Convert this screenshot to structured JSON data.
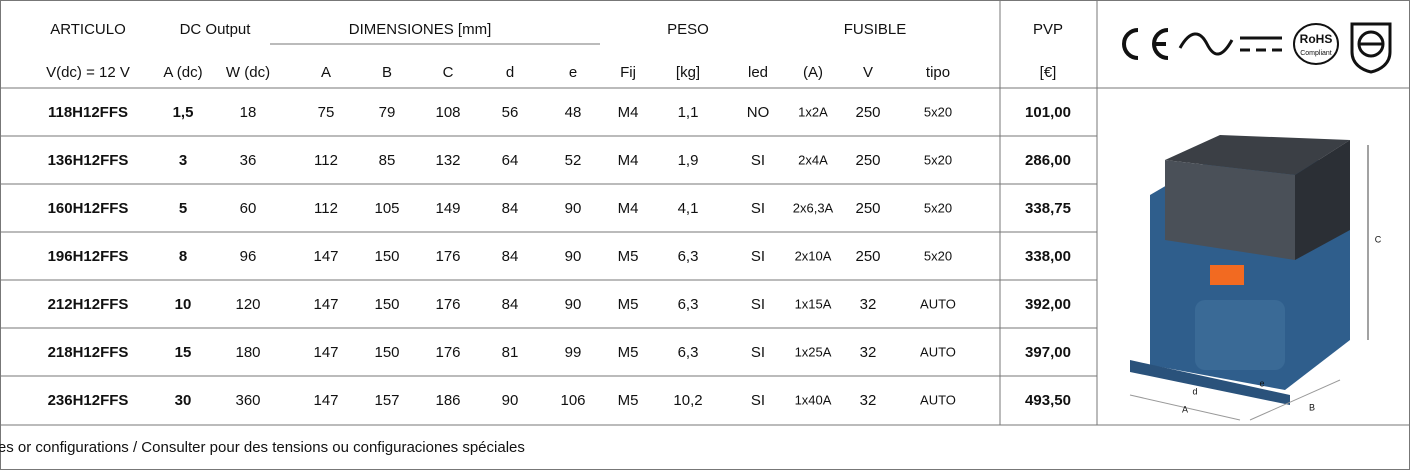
{
  "header": {
    "row1": [
      "ARTICULO",
      "DC Output",
      "DIMENSIONES [mm]",
      "PESO",
      "FUSIBLE",
      "PVP"
    ],
    "row2": [
      "V(dc) = 12 V",
      "A (dc)",
      "W (dc)",
      "A",
      "B",
      "C",
      "d",
      "e",
      "Fij",
      "[kg]",
      "led",
      "(A)",
      "V",
      "tipo",
      "[€]"
    ]
  },
  "certifications": {
    "rohs": "RoHS",
    "rohs_sub": "Compliant"
  },
  "photo_labels": [
    "C",
    "d",
    "e",
    "A",
    "B"
  ],
  "table": {
    "rows": [
      [
        "118H12FFS",
        "1,5",
        "18",
        "75",
        "79",
        "108",
        "56",
        "48",
        "M4",
        "1,1",
        "NO",
        "1x2A",
        "250",
        "5x20",
        "101,00"
      ],
      [
        "136H12FFS",
        "3",
        "36",
        "112",
        "85",
        "132",
        "64",
        "52",
        "M4",
        "1,9",
        "SI",
        "2x4A",
        "250",
        "5x20",
        "286,00"
      ],
      [
        "160H12FFS",
        "5",
        "60",
        "112",
        "105",
        "149",
        "84",
        "90",
        "M4",
        "4,1",
        "SI",
        "2x6,3A",
        "250",
        "5x20",
        "338,75"
      ],
      [
        "196H12FFS",
        "8",
        "96",
        "147",
        "150",
        "176",
        "84",
        "90",
        "M5",
        "6,3",
        "SI",
        "2x10A",
        "250",
        "5x20",
        "338,00"
      ],
      [
        "212H12FFS",
        "10",
        "120",
        "147",
        "150",
        "176",
        "84",
        "90",
        "M5",
        "6,3",
        "SI",
        "1x15A",
        "32",
        "AUTO",
        "392,00"
      ],
      [
        "218H12FFS",
        "15",
        "180",
        "147",
        "150",
        "176",
        "81",
        "99",
        "M5",
        "6,3",
        "SI",
        "1x25A",
        "32",
        "AUTO",
        "397,00"
      ],
      [
        "236H12FFS",
        "30",
        "360",
        "147",
        "157",
        "186",
        "90",
        "106",
        "M5",
        "10,2",
        "SI",
        "1x40A",
        "32",
        "AUTO",
        "493,50"
      ]
    ]
  },
  "note": "Consultar tensiones o configuraciones especiales / Ask for special voltages or configurations / Consulter pour des tensions ou configuraciones spéciales"
}
